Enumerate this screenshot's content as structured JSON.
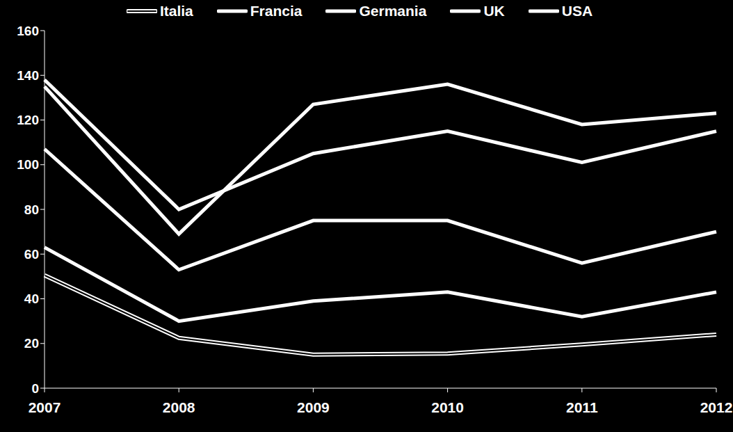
{
  "chart_data": {
    "type": "line",
    "categories": [
      "2007",
      "2008",
      "2009",
      "2010",
      "2011",
      "2012"
    ],
    "ylim": [
      0,
      160
    ],
    "yticks": [
      0,
      20,
      40,
      60,
      80,
      100,
      120,
      140,
      160
    ],
    "grid": false,
    "legend": "top",
    "series": [
      {
        "name": "Italia",
        "color": "#ffffff",
        "line_style": "double",
        "values": [
          50.5,
          22.5,
          15,
          15.5,
          19.5,
          24
        ]
      },
      {
        "name": "Francia",
        "color": "#ffffff",
        "line_style": "solid",
        "values": [
          63,
          30,
          39,
          43,
          32,
          43
        ]
      },
      {
        "name": "Germania",
        "color": "#ffffff",
        "line_style": "solid",
        "values": [
          107,
          53,
          75,
          75,
          56,
          70
        ]
      },
      {
        "name": "UK",
        "color": "#ffffff",
        "line_style": "solid",
        "values": [
          135,
          69,
          127,
          136,
          118,
          123
        ]
      },
      {
        "name": "USA",
        "color": "#ffffff",
        "line_style": "solid",
        "values": [
          138,
          80,
          105,
          115,
          101,
          115
        ]
      }
    ]
  }
}
